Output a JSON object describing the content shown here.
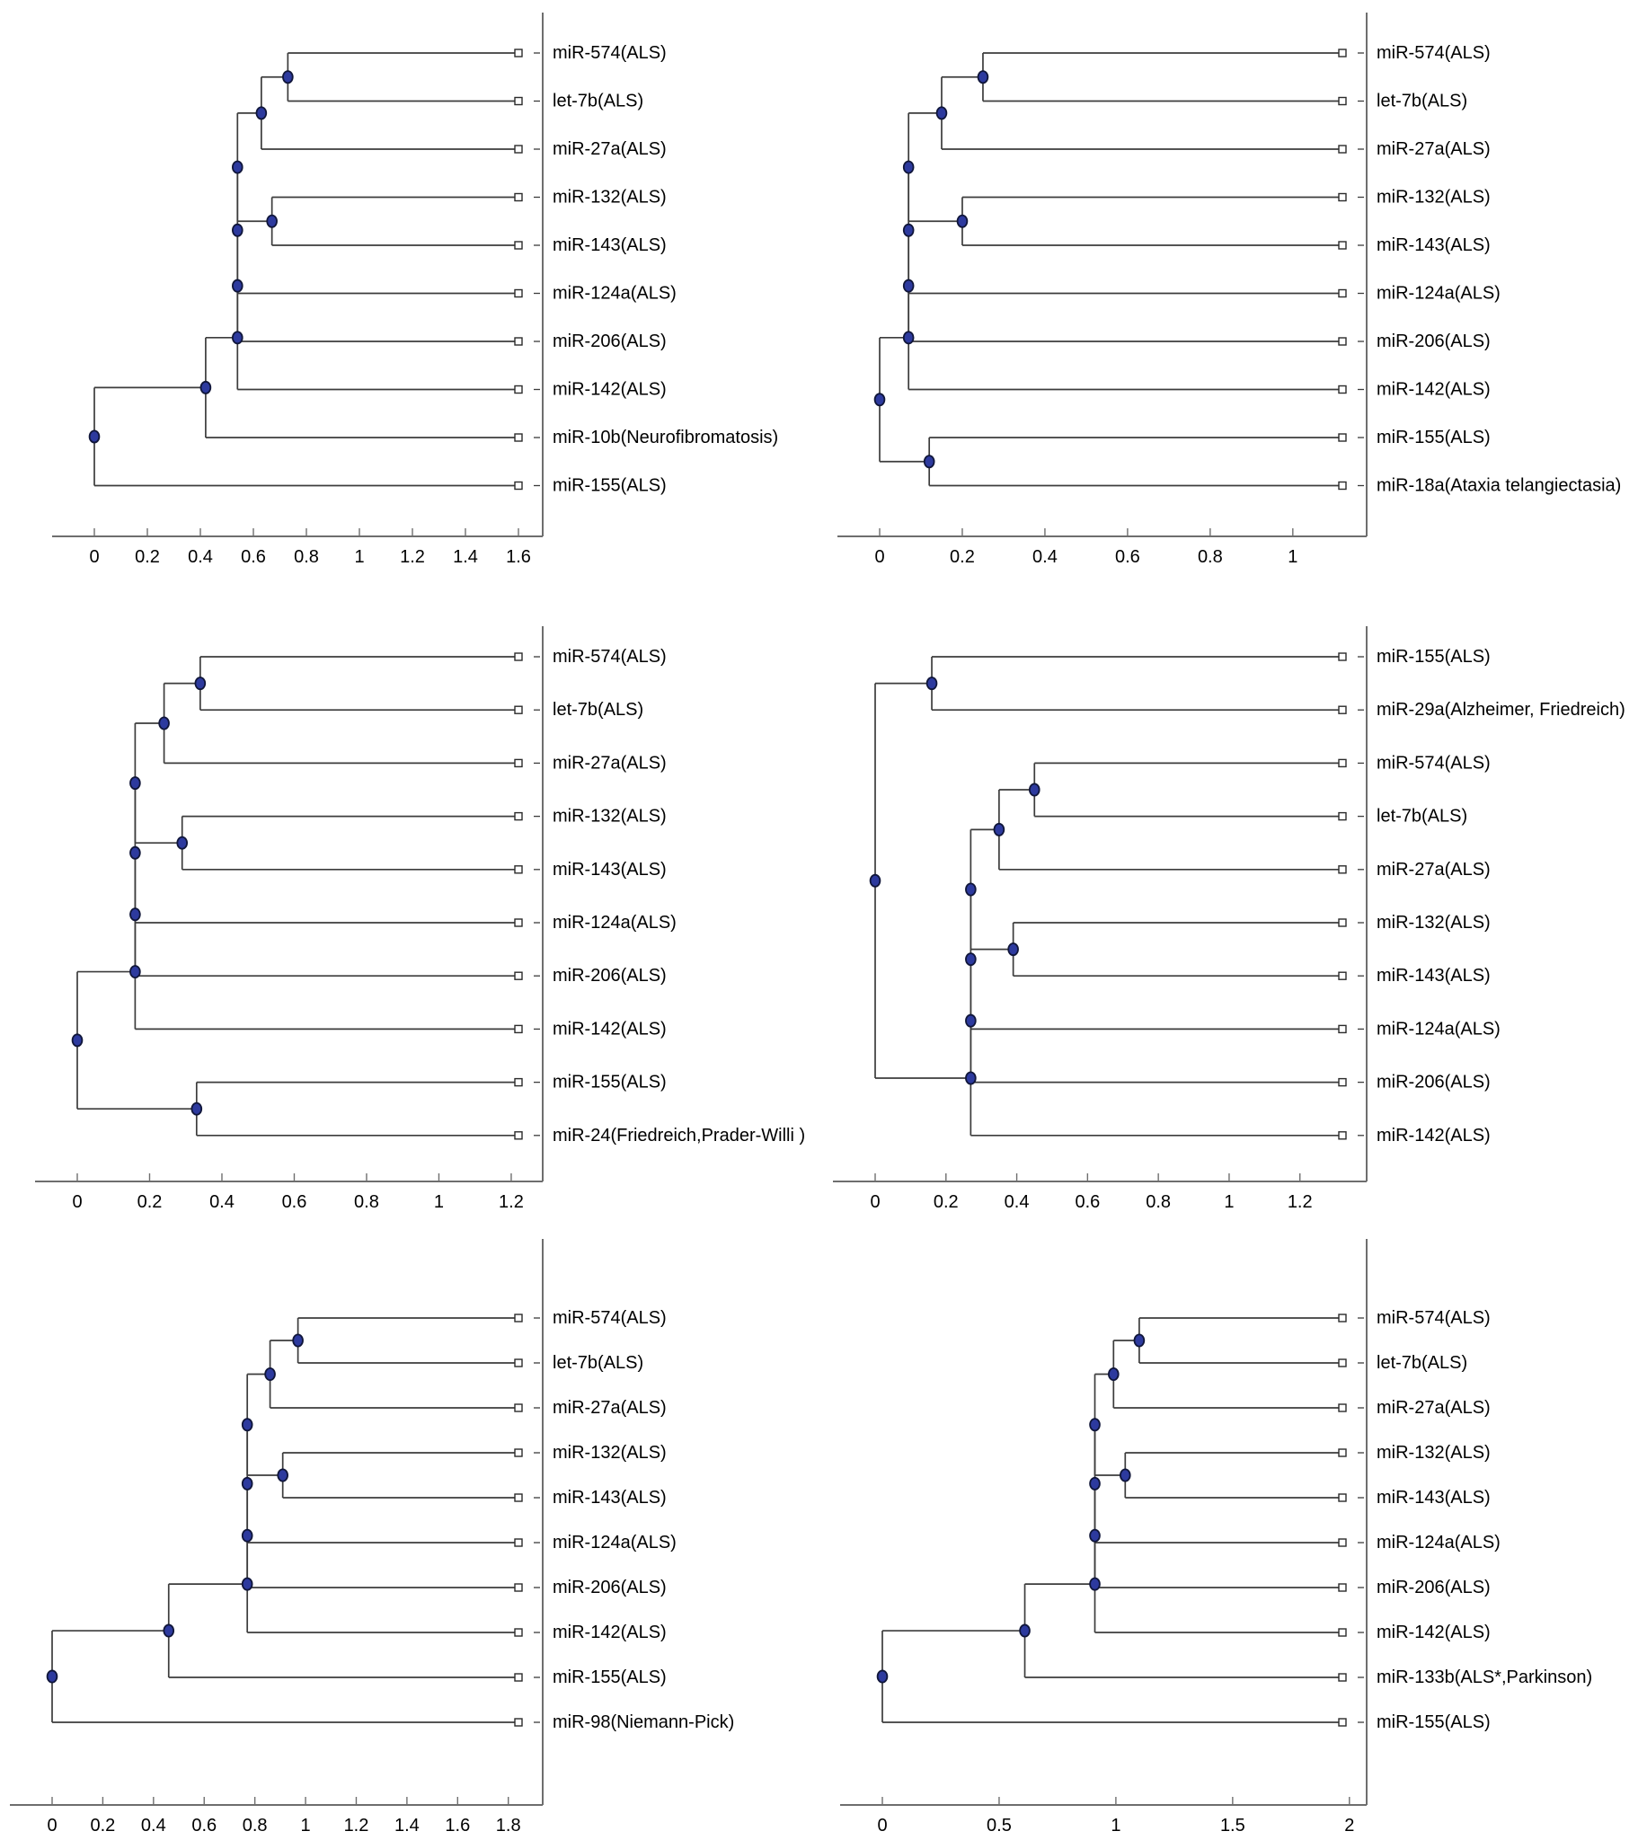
{
  "page": {
    "background": "#ffffff"
  },
  "style": {
    "line_color": "#3c3c3c",
    "axis_color": "#6e6e6e",
    "node_fill": "#2d3a9e",
    "node_stroke": "#10163a",
    "leaf_marker_fill": "#ffffff",
    "leaf_marker_stroke": "#2b2b2b",
    "text_color": "#000000"
  },
  "chart_data": [
    {
      "type": "dendrogram",
      "panel": "top-left",
      "orientation": "leaves-right",
      "leaves": [
        "miR-574(ALS)",
        "let-7b(ALS)",
        "miR-27a(ALS)",
        "miR-132(ALS)",
        "miR-143(ALS)",
        "miR-124a(ALS)",
        "miR-206(ALS)",
        "miR-142(ALS)",
        "miR-10b(Neurofibromatosis)",
        "miR-155(ALS)"
      ],
      "axis_ticks": [
        "0",
        "0.2",
        "0.4",
        "0.6",
        "0.8",
        "1",
        "1.2",
        "1.4",
        "1.6"
      ],
      "axis_tick_values": [
        0,
        0.2,
        0.4,
        0.6,
        0.8,
        1,
        1.2,
        1.4,
        1.6
      ],
      "leaf_position": 1.6,
      "tree": {
        "d": 0,
        "c": [
          {
            "d": 0.42,
            "c": [
              {
                "d": 0.54,
                "c": [
                  {
                    "d": 0.54,
                    "c": [
                      {
                        "d": 0.54,
                        "c": [
                          {
                            "d": 0.54,
                            "c": [
                              {
                                "d": 0.63,
                                "c": [
                                  {
                                    "d": 0.73,
                                    "c": [
                                      {
                                        "leaf": 0
                                      },
                                      {
                                        "leaf": 1
                                      }
                                    ]
                                  },
                                  {
                                    "leaf": 2
                                  }
                                ]
                              },
                              {
                                "d": 0.67,
                                "c": [
                                  {
                                    "leaf": 3
                                  },
                                  {
                                    "leaf": 4
                                  }
                                ]
                              }
                            ]
                          },
                          {
                            "leaf": 5
                          }
                        ]
                      },
                      {
                        "leaf": 6
                      }
                    ]
                  },
                  {
                    "leaf": 7
                  }
                ]
              },
              {
                "leaf": 8
              }
            ]
          },
          {
            "leaf": 9
          }
        ]
      }
    },
    {
      "type": "dendrogram",
      "panel": "top-right",
      "orientation": "leaves-right",
      "leaves": [
        "miR-574(ALS)",
        "let-7b(ALS)",
        "miR-27a(ALS)",
        "miR-132(ALS)",
        "miR-143(ALS)",
        "miR-124a(ALS)",
        "miR-206(ALS)",
        "miR-142(ALS)",
        "miR-155(ALS)",
        "miR-18a(Ataxia telangiectasia)"
      ],
      "axis_ticks": [
        "0",
        "0.2",
        "0.4",
        "0.6",
        "0.8",
        "1"
      ],
      "axis_tick_values": [
        0,
        0.2,
        0.4,
        0.6,
        0.8,
        1
      ],
      "leaf_position": 1.12,
      "tree": {
        "d": 0,
        "c": [
          {
            "d": 0.07,
            "c": [
              {
                "d": 0.07,
                "c": [
                  {
                    "d": 0.07,
                    "c": [
                      {
                        "d": 0.07,
                        "c": [
                          {
                            "d": 0.15,
                            "c": [
                              {
                                "d": 0.25,
                                "c": [
                                  {
                                    "leaf": 0
                                  },
                                  {
                                    "leaf": 1
                                  }
                                ]
                              },
                              {
                                "leaf": 2
                              }
                            ]
                          },
                          {
                            "d": 0.2,
                            "c": [
                              {
                                "leaf": 3
                              },
                              {
                                "leaf": 4
                              }
                            ]
                          }
                        ]
                      },
                      {
                        "leaf": 5
                      }
                    ]
                  },
                  {
                    "leaf": 6
                  }
                ]
              },
              {
                "leaf": 7
              }
            ]
          },
          {
            "d": 0.12,
            "c": [
              {
                "leaf": 8
              },
              {
                "leaf": 9
              }
            ]
          }
        ]
      }
    },
    {
      "type": "dendrogram",
      "panel": "middle-left",
      "orientation": "leaves-right",
      "leaves": [
        "miR-574(ALS)",
        "let-7b(ALS)",
        "miR-27a(ALS)",
        "miR-132(ALS)",
        "miR-143(ALS)",
        "miR-124a(ALS)",
        "miR-206(ALS)",
        "miR-142(ALS)",
        "miR-155(ALS)",
        "miR-24(Friedreich,Prader-Willi )"
      ],
      "axis_ticks": [
        "0",
        "0.2",
        "0.4",
        "0.6",
        "0.8",
        "1",
        "1.2"
      ],
      "axis_tick_values": [
        0,
        0.2,
        0.4,
        0.6,
        0.8,
        1,
        1.2
      ],
      "leaf_position": 1.22,
      "tree": {
        "d": 0,
        "c": [
          {
            "d": 0.16,
            "c": [
              {
                "d": 0.16,
                "c": [
                  {
                    "d": 0.16,
                    "c": [
                      {
                        "d": 0.16,
                        "c": [
                          {
                            "d": 0.24,
                            "c": [
                              {
                                "d": 0.34,
                                "c": [
                                  {
                                    "leaf": 0
                                  },
                                  {
                                    "leaf": 1
                                  }
                                ]
                              },
                              {
                                "leaf": 2
                              }
                            ]
                          },
                          {
                            "d": 0.29,
                            "c": [
                              {
                                "leaf": 3
                              },
                              {
                                "leaf": 4
                              }
                            ]
                          }
                        ]
                      },
                      {
                        "leaf": 5
                      }
                    ]
                  },
                  {
                    "leaf": 6
                  }
                ]
              },
              {
                "leaf": 7
              }
            ]
          },
          {
            "d": 0.33,
            "c": [
              {
                "leaf": 8
              },
              {
                "leaf": 9
              }
            ]
          }
        ]
      }
    },
    {
      "type": "dendrogram",
      "panel": "middle-right",
      "orientation": "leaves-right",
      "leaves": [
        "miR-155(ALS)",
        "miR-29a(Alzheimer, Friedreich)",
        "miR-574(ALS)",
        "let-7b(ALS)",
        "miR-27a(ALS)",
        "miR-132(ALS)",
        "miR-143(ALS)",
        "miR-124a(ALS)",
        "miR-206(ALS)",
        "miR-142(ALS)"
      ],
      "axis_ticks": [
        "0",
        "0.2",
        "0.4",
        "0.6",
        "0.8",
        "1",
        "1.2"
      ],
      "axis_tick_values": [
        0,
        0.2,
        0.4,
        0.6,
        0.8,
        1,
        1.2
      ],
      "leaf_position": 1.32,
      "tree": {
        "d": 0,
        "c": [
          {
            "d": 0.16,
            "c": [
              {
                "leaf": 0
              },
              {
                "leaf": 1
              }
            ]
          },
          {
            "d": 0.27,
            "c": [
              {
                "d": 0.27,
                "c": [
                  {
                    "d": 0.27,
                    "c": [
                      {
                        "d": 0.27,
                        "c": [
                          {
                            "d": 0.35,
                            "c": [
                              {
                                "d": 0.45,
                                "c": [
                                  {
                                    "leaf": 2
                                  },
                                  {
                                    "leaf": 3
                                  }
                                ]
                              },
                              {
                                "leaf": 4
                              }
                            ]
                          },
                          {
                            "d": 0.39,
                            "c": [
                              {
                                "leaf": 5
                              },
                              {
                                "leaf": 6
                              }
                            ]
                          }
                        ]
                      },
                      {
                        "leaf": 7
                      }
                    ]
                  },
                  {
                    "leaf": 8
                  }
                ]
              },
              {
                "leaf": 9
              }
            ]
          }
        ]
      }
    },
    {
      "type": "dendrogram",
      "panel": "bottom-left",
      "orientation": "leaves-right",
      "leaves": [
        "miR-574(ALS)",
        "let-7b(ALS)",
        "miR-27a(ALS)",
        "miR-132(ALS)",
        "miR-143(ALS)",
        "miR-124a(ALS)",
        "miR-206(ALS)",
        "miR-142(ALS)",
        "miR-155(ALS)",
        "miR-98(Niemann-Pick)"
      ],
      "axis_ticks": [
        "0",
        "0.2",
        "0.4",
        "0.6",
        "0.8",
        "1",
        "1.2",
        "1.4",
        "1.6",
        "1.8"
      ],
      "axis_tick_values": [
        0,
        0.2,
        0.4,
        0.6,
        0.8,
        1,
        1.2,
        1.4,
        1.6,
        1.8
      ],
      "leaf_position": 1.84,
      "tree": {
        "d": 0,
        "c": [
          {
            "d": 0.46,
            "c": [
              {
                "d": 0.77,
                "c": [
                  {
                    "d": 0.77,
                    "c": [
                      {
                        "d": 0.77,
                        "c": [
                          {
                            "d": 0.77,
                            "c": [
                              {
                                "d": 0.86,
                                "c": [
                                  {
                                    "d": 0.97,
                                    "c": [
                                      {
                                        "leaf": 0
                                      },
                                      {
                                        "leaf": 1
                                      }
                                    ]
                                  },
                                  {
                                    "leaf": 2
                                  }
                                ]
                              },
                              {
                                "d": 0.91,
                                "c": [
                                  {
                                    "leaf": 3
                                  },
                                  {
                                    "leaf": 4
                                  }
                                ]
                              }
                            ]
                          },
                          {
                            "leaf": 5
                          }
                        ]
                      },
                      {
                        "leaf": 6
                      }
                    ]
                  },
                  {
                    "leaf": 7
                  }
                ]
              },
              {
                "leaf": 8
              }
            ]
          },
          {
            "leaf": 9
          }
        ]
      }
    },
    {
      "type": "dendrogram",
      "panel": "bottom-right",
      "orientation": "leaves-right",
      "leaves": [
        "miR-574(ALS)",
        "let-7b(ALS)",
        "miR-27a(ALS)",
        "miR-132(ALS)",
        "miR-143(ALS)",
        "miR-124a(ALS)",
        "miR-206(ALS)",
        "miR-142(ALS)",
        "miR-133b(ALS*,Parkinson)",
        "miR-155(ALS)"
      ],
      "axis_ticks": [
        "0",
        "0.5",
        "1",
        "1.5",
        "2"
      ],
      "axis_tick_values": [
        0,
        0.5,
        1,
        1.5,
        2
      ],
      "leaf_position": 1.97,
      "tree": {
        "d": 0,
        "c": [
          {
            "d": 0.61,
            "c": [
              {
                "d": 0.91,
                "c": [
                  {
                    "d": 0.91,
                    "c": [
                      {
                        "d": 0.91,
                        "c": [
                          {
                            "d": 0.91,
                            "c": [
                              {
                                "d": 0.99,
                                "c": [
                                  {
                                    "d": 1.1,
                                    "c": [
                                      {
                                        "leaf": 0
                                      },
                                      {
                                        "leaf": 1
                                      }
                                    ]
                                  },
                                  {
                                    "leaf": 2
                                  }
                                ]
                              },
                              {
                                "d": 1.04,
                                "c": [
                                  {
                                    "leaf": 3
                                  },
                                  {
                                    "leaf": 4
                                  }
                                ]
                              }
                            ]
                          },
                          {
                            "leaf": 5
                          }
                        ]
                      },
                      {
                        "leaf": 6
                      }
                    ]
                  },
                  {
                    "leaf": 7
                  }
                ]
              },
              {
                "leaf": 8
              }
            ]
          },
          {
            "leaf": 9
          }
        ]
      }
    }
  ]
}
